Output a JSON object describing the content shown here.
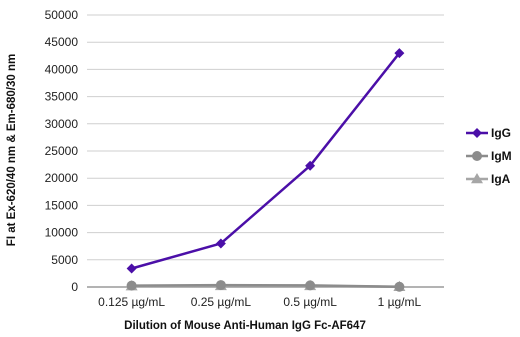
{
  "chart_data": {
    "type": "line",
    "title": "",
    "xlabel": "Dilution of Mouse Anti-Human IgG Fc-AF647",
    "ylabel": "FI at Ex-620/40 nm & Em-680/30 nm",
    "categories": [
      "0.125 µg/mL",
      "0.25 µg/mL",
      "0.5 µg/mL",
      "1 µg/mL"
    ],
    "ylim": [
      0,
      50000
    ],
    "yticks": [
      0,
      5000,
      10000,
      15000,
      20000,
      25000,
      30000,
      35000,
      40000,
      45000,
      50000
    ],
    "grid": true,
    "legend_position": "right",
    "series": [
      {
        "name": "IgG",
        "values": [
          3400,
          8000,
          22300,
          43000
        ],
        "color": "#4b0fa8",
        "marker": "diamond"
      },
      {
        "name": "IgM",
        "values": [
          250,
          350,
          300,
          50
        ],
        "color": "#8c8c8c",
        "marker": "circle"
      },
      {
        "name": "IgA",
        "values": [
          150,
          200,
          200,
          40
        ],
        "color": "#a6a6a6",
        "marker": "triangle"
      }
    ]
  }
}
